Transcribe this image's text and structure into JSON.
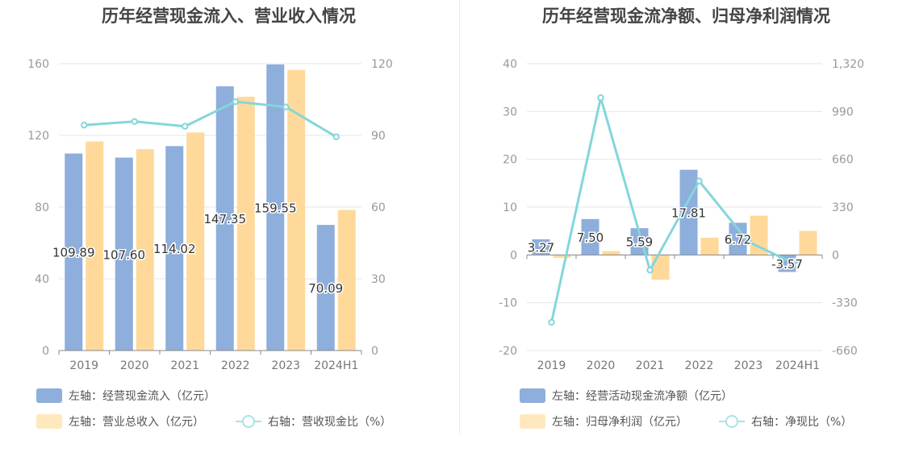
{
  "colors": {
    "bar1": "#8EAEDB",
    "bar2": "#FFD99A",
    "line": "#84D6DA",
    "grid": "#E3E6EE",
    "axis": "#999999"
  },
  "chart_data": [
    {
      "type": "bar",
      "title": "历年经营现金流入、营业收入情况",
      "categories": [
        "2019",
        "2020",
        "2021",
        "2022",
        "2023",
        "2024H1"
      ],
      "ylim_left": [
        0,
        160
      ],
      "left_ticks": [
        "0",
        "40",
        "80",
        "120",
        "160"
      ],
      "ylim_right": [
        0,
        120
      ],
      "right_ticks": [
        "0",
        "30",
        "60",
        "90",
        "120"
      ],
      "series": [
        {
          "name": "左轴：经营现金流入（亿元）",
          "axis": "left",
          "kind": "bar",
          "values": [
            109.89,
            107.6,
            114.02,
            147.35,
            159.55,
            70.09
          ],
          "labels": [
            "109.89",
            "107.60",
            "114.02",
            "147.35",
            "159.55",
            "70.09"
          ]
        },
        {
          "name": "左轴：营业总收入（亿元）",
          "axis": "left",
          "kind": "bar",
          "values": [
            116.6,
            112.3,
            121.6,
            141.5,
            156.5,
            78.4
          ]
        },
        {
          "name": "右轴：营收现金比（%）",
          "axis": "right",
          "kind": "line",
          "values": [
            94.3,
            95.8,
            93.8,
            104.1,
            101.9,
            89.4
          ]
        }
      ],
      "grid": true,
      "legend_position": "bottom"
    },
    {
      "type": "bar",
      "title": "历年经营现金流净额、归母净利润情况",
      "categories": [
        "2019",
        "2020",
        "2021",
        "2022",
        "2023",
        "2024H1"
      ],
      "ylim_left": [
        -20,
        40
      ],
      "left_ticks": [
        "-20",
        "-10",
        "0",
        "10",
        "20",
        "30",
        "40"
      ],
      "ylim_right": [
        -660,
        1320
      ],
      "right_ticks": [
        "-660",
        "-330",
        "0",
        "330",
        "660",
        "990",
        "1,320"
      ],
      "series": [
        {
          "name": "左轴：经营活动现金流净额（亿元）",
          "axis": "left",
          "kind": "bar",
          "values": [
            3.27,
            7.5,
            5.59,
            17.81,
            6.72,
            -3.57
          ],
          "labels": [
            "3.27",
            "7.50",
            "5.59",
            "17.81",
            "6.72",
            "-3.57"
          ]
        },
        {
          "name": "左轴：归母净利润（亿元）",
          "axis": "left",
          "kind": "bar",
          "values": [
            -0.6,
            0.8,
            -5.2,
            3.6,
            8.2,
            5.0
          ]
        },
        {
          "name": "右轴：净现比（%）",
          "axis": "right",
          "kind": "line",
          "values": [
            -465,
            1085,
            -105,
            510,
            90,
            -70
          ]
        }
      ],
      "grid": true,
      "legend_position": "bottom"
    }
  ]
}
